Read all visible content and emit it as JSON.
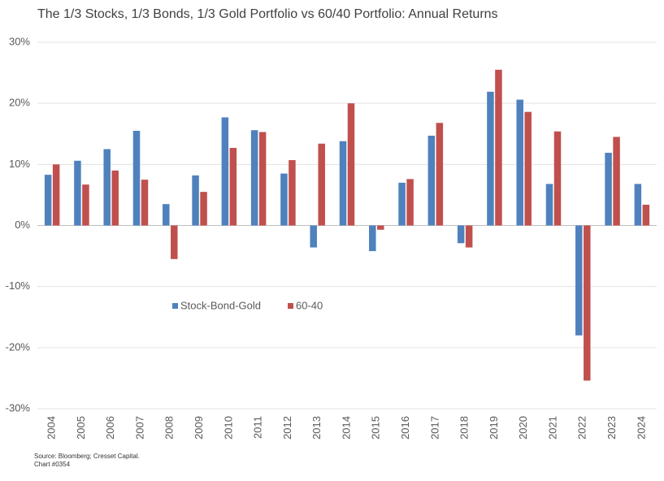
{
  "chart_data": {
    "type": "bar",
    "title": "The 1/3 Stocks, 1/3 Bonds, 1/3 Gold Portfolio vs 60/40 Portfolio: Annual Returns",
    "categories": [
      "2004",
      "2005",
      "2006",
      "2007",
      "2008",
      "2009",
      "2010",
      "2011",
      "2012",
      "2013",
      "2014",
      "2015",
      "2016",
      "2017",
      "2018",
      "2019",
      "2020",
      "2021",
      "2022",
      "2023",
      "2024"
    ],
    "series": [
      {
        "name": "Stock-Bond-Gold",
        "color": "#4f81bd",
        "values": [
          8.3,
          10.6,
          12.5,
          15.5,
          3.5,
          8.2,
          17.7,
          15.6,
          8.5,
          -3.6,
          13.8,
          -4.2,
          7.0,
          14.7,
          -2.9,
          21.9,
          20.6,
          6.8,
          -18.0,
          11.9,
          6.8
        ]
      },
      {
        "name": "60-40",
        "color": "#c0504d",
        "values": [
          10.0,
          6.7,
          9.0,
          7.5,
          -5.5,
          5.5,
          12.7,
          15.3,
          10.7,
          13.4,
          20.0,
          -0.7,
          7.6,
          16.8,
          -3.6,
          25.5,
          18.6,
          15.4,
          -25.4,
          14.5,
          3.4
        ]
      }
    ],
    "ylim": [
      -30,
      30
    ],
    "yticks": [
      {
        "value": -30,
        "label": "-30%"
      },
      {
        "value": -20,
        "label": "-20%"
      },
      {
        "value": -10,
        "label": "-10%"
      },
      {
        "value": 0,
        "label": "0%"
      },
      {
        "value": 10,
        "label": "10%"
      },
      {
        "value": 20,
        "label": "20%"
      },
      {
        "value": 30,
        "label": "30%"
      }
    ],
    "grid": true,
    "source": "Source: Bloomberg; Cresset Capital.",
    "chart_id": "Chart #0354"
  }
}
